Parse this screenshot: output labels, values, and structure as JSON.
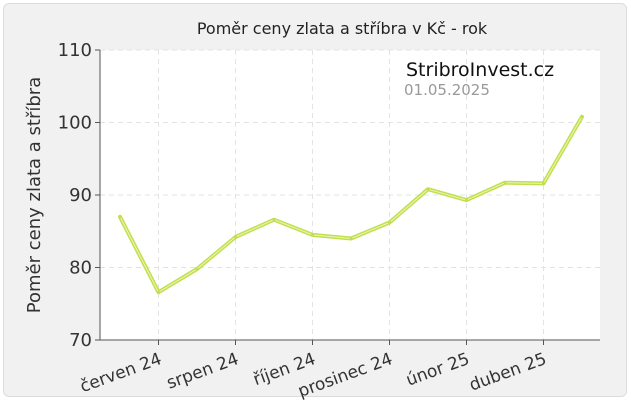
{
  "chart_data": {
    "type": "line",
    "title": "Poměr ceny zlata a stříbra v Kč - rok",
    "xlabel": "",
    "ylabel": "Poměr ceny zlata a stříbra",
    "ylim": [
      70,
      110
    ],
    "yticks": [
      70,
      80,
      90,
      100,
      110
    ],
    "tick_labels": [
      "červen 24",
      "srpen 24",
      "říjen 24",
      "prosinec 24",
      "únor 25",
      "duben 25"
    ],
    "grid": true,
    "series_color": "#c2df4e",
    "series": [
      {
        "values": [
          87.0,
          76.6,
          79.8,
          84.2,
          86.6,
          84.5,
          84.0,
          86.2,
          90.8,
          89.3,
          91.7,
          91.6,
          100.8
        ]
      }
    ],
    "annotations": {
      "brand": "StribroInvest.cz",
      "date": "01.05.2025"
    }
  }
}
